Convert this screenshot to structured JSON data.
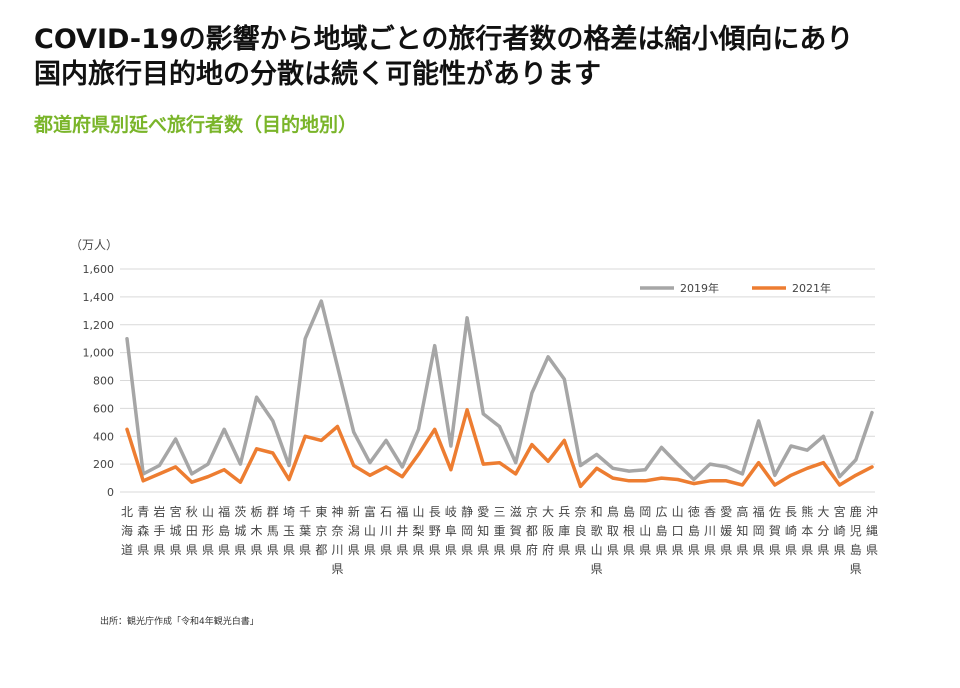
{
  "headline": {
    "line1": "COVID-19の影響から地域ごとの旅行者数の格差は縮小傾向にあり",
    "line2": "国内旅行目的地の分散は続く可能性があります"
  },
  "subtitle": "都道府県別延べ旅行者数（目的地別）",
  "source": "出所：観光庁作成「令和4年観光白書」",
  "chart_data": {
    "type": "line",
    "title": "",
    "ylabel": "（万人）",
    "xlabel": "",
    "ylim": [
      0,
      1600
    ],
    "yticks": [
      0,
      200,
      400,
      600,
      800,
      1000,
      1200,
      1400,
      1600
    ],
    "ytick_labels": [
      "0",
      "200",
      "400",
      "600",
      "800",
      "1,000",
      "1,200",
      "1,400",
      "1,600"
    ],
    "grid": "horizontal",
    "legend_position": "top-right",
    "categories": [
      "北海道",
      "青森県",
      "岩手県",
      "宮城県",
      "秋田県",
      "山形県",
      "福島県",
      "茨城県",
      "栃木県",
      "群馬県",
      "埼玉県",
      "千葉県",
      "東京都",
      "神奈川県",
      "新潟県",
      "富山県",
      "石川県",
      "福井県",
      "山梨県",
      "長野県",
      "岐阜県",
      "静岡県",
      "愛知県",
      "三重県",
      "滋賀県",
      "京都府",
      "大阪府",
      "兵庫県",
      "奈良県",
      "和歌山県",
      "鳥取県",
      "島根県",
      "岡山県",
      "広島県",
      "山口県",
      "徳島県",
      "香川県",
      "愛媛県",
      "高知県",
      "福岡県",
      "佐賀県",
      "長崎県",
      "熊本県",
      "大分県",
      "宮崎県",
      "鹿児島県",
      "沖縄県"
    ],
    "series": [
      {
        "name": "2019年",
        "color": "#a6a6a6",
        "values": [
          1100,
          130,
          190,
          380,
          130,
          200,
          450,
          200,
          680,
          510,
          190,
          1100,
          1370,
          900,
          430,
          210,
          370,
          180,
          450,
          1050,
          330,
          1250,
          560,
          470,
          210,
          710,
          970,
          810,
          190,
          270,
          170,
          150,
          160,
          320,
          200,
          90,
          200,
          180,
          130,
          510,
          120,
          330,
          300,
          400,
          110,
          230,
          570
        ]
      },
      {
        "name": "2021年",
        "color": "#ed7d31",
        "values": [
          450,
          80,
          130,
          180,
          70,
          110,
          160,
          70,
          310,
          280,
          90,
          400,
          370,
          470,
          190,
          120,
          180,
          110,
          270,
          450,
          160,
          590,
          200,
          210,
          130,
          340,
          220,
          370,
          40,
          170,
          100,
          80,
          80,
          100,
          90,
          60,
          80,
          80,
          50,
          210,
          50,
          120,
          170,
          210,
          50,
          120,
          180
        ]
      }
    ]
  }
}
